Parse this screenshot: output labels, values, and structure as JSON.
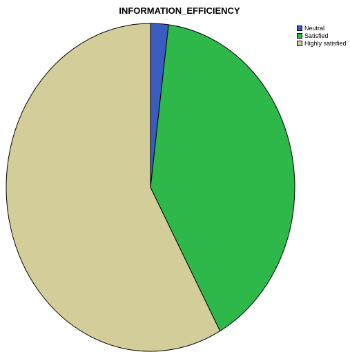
{
  "chart_data": {
    "type": "pie",
    "title": "INFORMATION_EFFICIENCY",
    "categories": [
      "Neutral",
      "Satisfied",
      "Highly satisfied"
    ],
    "values": [
      2.0,
      40.0,
      58.0
    ],
    "colors": [
      "#3a5bbf",
      "#2fb84a",
      "#d3cd9a"
    ],
    "legend_position": "top-right"
  }
}
